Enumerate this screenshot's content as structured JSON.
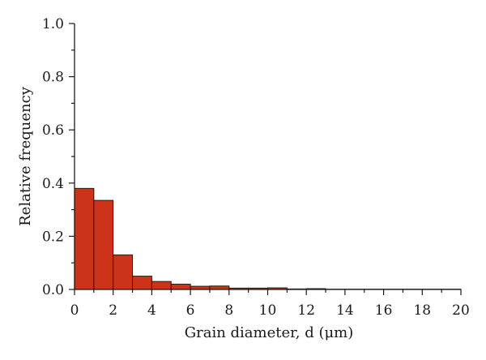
{
  "chart_data": {
    "type": "bar",
    "title": "",
    "xlabel": "Grain diameter, d (μm)",
    "ylabel": "Relative frequency",
    "xlim": [
      0,
      20
    ],
    "ylim": [
      0,
      1.0
    ],
    "x_ticks": [
      "0",
      "2",
      "4",
      "6",
      "8",
      "10",
      "12",
      "14",
      "16",
      "18",
      "20"
    ],
    "y_ticks": [
      "0.0",
      "0.2",
      "0.4",
      "0.6",
      "0.8",
      "1.0"
    ],
    "bin_width": 1,
    "bin_starts": [
      0,
      1,
      2,
      3,
      4,
      5,
      6,
      7,
      8,
      9,
      10,
      11,
      12,
      13,
      14,
      15,
      16,
      17,
      18,
      19
    ],
    "values": [
      0.38,
      0.335,
      0.13,
      0.05,
      0.03,
      0.02,
      0.012,
      0.013,
      0.005,
      0.005,
      0.006,
      0.002,
      0.003,
      0.001,
      0.001,
      0.001,
      0.001,
      0.001,
      0.001,
      0.001
    ],
    "bar_color": "#cc3318",
    "grid": false,
    "legend": "none"
  }
}
